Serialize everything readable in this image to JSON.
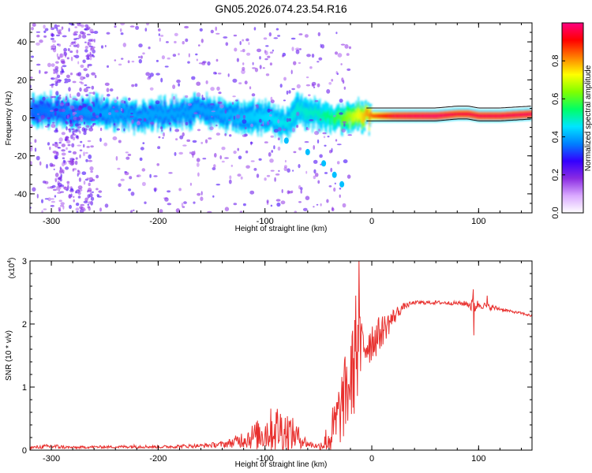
{
  "title": "GN05.2026.074.23.54.R16",
  "chart_data": [
    {
      "type": "heatmap",
      "name": "spectrogram",
      "xlabel": "Height of straight line (km)",
      "ylabel": "Frequency (Hz)",
      "xlim": [
        -320,
        150
      ],
      "ylim": [
        -50,
        50
      ],
      "xticks": [
        -300,
        -200,
        -100,
        0,
        100
      ],
      "xtick_labels": [
        "-300",
        "-200",
        "-100",
        "0",
        "100"
      ],
      "yticks": [
        -40,
        -20,
        0,
        20,
        40
      ],
      "ytick_labels": [
        "-40",
        "-20",
        "0",
        "20",
        "40"
      ],
      "colorbar": {
        "label": "Normalized spectral amplitude",
        "range": [
          0.0,
          1.0
        ],
        "ticks": [
          0.0,
          0.2,
          0.4,
          0.6,
          0.8
        ],
        "tick_labels": [
          "0.0",
          "0.2",
          "0.4",
          "0.6",
          "0.8"
        ],
        "colors": [
          "#ffffff",
          "#d9a8ff",
          "#8a2be2",
          "#3300ff",
          "#0080ff",
          "#00e5ff",
          "#00ff66",
          "#80ff00",
          "#ffff00",
          "#ff8000",
          "#ff0000",
          "#ff0080"
        ]
      },
      "band_center_hz": [
        [
          -320,
          3
        ],
        [
          -300,
          4
        ],
        [
          -280,
          2
        ],
        [
          -260,
          3
        ],
        [
          -240,
          2
        ],
        [
          -220,
          1
        ],
        [
          -200,
          2
        ],
        [
          -180,
          3
        ],
        [
          -160,
          4
        ],
        [
          -140,
          2
        ],
        [
          -120,
          1
        ],
        [
          -100,
          0
        ],
        [
          -90,
          -2
        ],
        [
          -80,
          -3
        ],
        [
          -70,
          5
        ],
        [
          -60,
          3
        ],
        [
          -50,
          2
        ],
        [
          -40,
          0
        ],
        [
          -30,
          0
        ],
        [
          -10,
          1
        ],
        [
          0,
          1
        ],
        [
          20,
          1
        ],
        [
          40,
          1
        ],
        [
          60,
          1
        ],
        [
          80,
          2
        ],
        [
          90,
          2
        ],
        [
          100,
          1
        ],
        [
          120,
          1
        ],
        [
          150,
          2
        ]
      ],
      "band_intensity": [
        [
          -320,
          0.35
        ],
        [
          -250,
          0.4
        ],
        [
          -200,
          0.4
        ],
        [
          -150,
          0.4
        ],
        [
          -100,
          0.45
        ],
        [
          -50,
          0.5
        ],
        [
          -30,
          0.6
        ],
        [
          -10,
          0.75
        ],
        [
          0,
          0.85
        ],
        [
          20,
          0.95
        ],
        [
          40,
          0.97
        ],
        [
          60,
          0.98
        ],
        [
          80,
          0.95
        ],
        [
          100,
          0.96
        ],
        [
          150,
          0.97
        ]
      ],
      "descending_branch_hz": [
        [
          -80,
          -12
        ],
        [
          -60,
          -18
        ],
        [
          -45,
          -24
        ],
        [
          -35,
          -30
        ],
        [
          -28,
          -35
        ]
      ]
    },
    {
      "type": "line",
      "name": "snr",
      "xlabel": "Height of straight line (km)",
      "ylabel": "SNR (10 * v/v)",
      "multiplier_label": "(x10",
      "multiplier_exp": "4",
      "multiplier_close": ")",
      "xlim": [
        -320,
        150
      ],
      "ylim": [
        0,
        3
      ],
      "xticks": [
        -300,
        -200,
        -100,
        0,
        100
      ],
      "xtick_labels": [
        "-300",
        "-200",
        "-100",
        "0",
        "100"
      ],
      "yticks": [
        0,
        1,
        2,
        3
      ],
      "ytick_labels": [
        "0",
        "1",
        "2",
        "3"
      ],
      "color": "#e8302e",
      "x": [
        -320,
        -300,
        -280,
        -260,
        -240,
        -220,
        -200,
        -180,
        -160,
        -140,
        -130,
        -120,
        -110,
        -100,
        -90,
        -80,
        -70,
        -60,
        -50,
        -40,
        -35,
        -30,
        -25,
        -20,
        -15,
        -10,
        -5,
        0,
        5,
        10,
        15,
        20,
        25,
        30,
        40,
        60,
        80,
        90,
        95,
        100,
        110,
        120,
        130,
        140,
        150
      ],
      "y": [
        0.04,
        0.06,
        0.04,
        0.05,
        0.05,
        0.06,
        0.05,
        0.06,
        0.07,
        0.09,
        0.12,
        0.18,
        0.22,
        0.28,
        0.35,
        0.3,
        0.22,
        0.1,
        0.06,
        0.18,
        0.35,
        0.6,
        0.85,
        1.1,
        1.4,
        1.6,
        1.7,
        1.75,
        1.8,
        1.9,
        2.0,
        2.1,
        2.2,
        2.28,
        2.34,
        2.34,
        2.33,
        2.32,
        2.28,
        2.31,
        2.27,
        2.24,
        2.2,
        2.17,
        2.13
      ],
      "noise": [
        0.02,
        0.04,
        0.02,
        0.02,
        0.02,
        0.03,
        0.02,
        0.03,
        0.03,
        0.05,
        0.08,
        0.15,
        0.22,
        0.3,
        0.4,
        0.35,
        0.2,
        0.06,
        0.04,
        0.3,
        0.45,
        0.55,
        0.65,
        0.75,
        0.8,
        0.55,
        0.45,
        0.35,
        0.3,
        0.25,
        0.2,
        0.15,
        0.1,
        0.05,
        0.03,
        0.03,
        0.03,
        0.05,
        0.15,
        0.06,
        0.05,
        0.03,
        0.02,
        0.02,
        0.02
      ],
      "spikes": [
        [
          -12,
          3.05
        ],
        [
          -15,
          2.45
        ],
        [
          95,
          2.55
        ],
        [
          95.5,
          1.82
        ],
        [
          108,
          2.45
        ]
      ]
    }
  ]
}
